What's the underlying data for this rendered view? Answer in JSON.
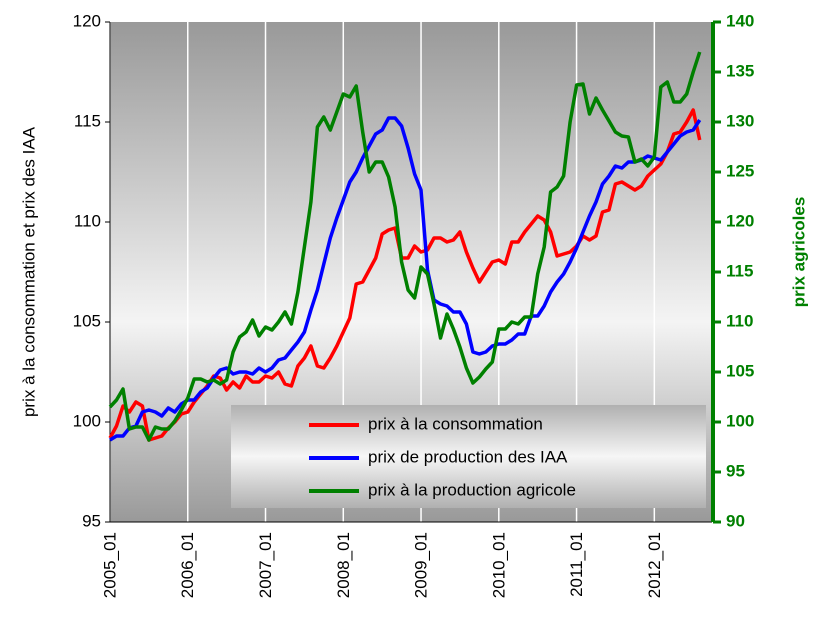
{
  "chart_data": {
    "type": "line",
    "y_label": "prix à la consommation et prix des IAA",
    "y2_label": "prix agricoles",
    "categories": [
      "2005_01",
      null,
      null,
      null,
      null,
      null,
      null,
      null,
      null,
      null,
      null,
      null,
      "2006_01",
      null,
      null,
      null,
      null,
      null,
      null,
      null,
      null,
      null,
      null,
      null,
      "2007_01",
      null,
      null,
      null,
      null,
      null,
      null,
      null,
      null,
      null,
      null,
      null,
      "2008_01",
      null,
      null,
      null,
      null,
      null,
      null,
      null,
      null,
      null,
      null,
      null,
      "2009_01",
      null,
      null,
      null,
      null,
      null,
      null,
      null,
      null,
      null,
      null,
      null,
      "2010_01",
      null,
      null,
      null,
      null,
      null,
      null,
      null,
      null,
      null,
      null,
      null,
      "2011_01",
      null,
      null,
      null,
      null,
      null,
      null,
      null,
      null,
      null,
      null,
      null,
      "2012_01",
      null,
      null,
      null,
      null,
      null,
      null,
      null
    ],
    "series": [
      {
        "name": "prix à la consommation",
        "color": "#ff0000",
        "values": [
          99.2,
          99.8,
          100.8,
          100.5,
          101.0,
          100.8,
          99.1,
          99.2,
          99.3,
          99.7,
          100.0,
          100.4,
          100.5,
          101.0,
          101.4,
          101.8,
          102.3,
          102.2,
          101.6,
          102.0,
          101.7,
          102.3,
          102.0,
          102.0,
          102.3,
          102.2,
          102.5,
          101.9,
          101.8,
          102.8,
          103.2,
          103.8,
          102.8,
          102.7,
          103.2,
          103.8,
          104.5,
          105.2,
          106.9,
          107.0,
          107.6,
          108.2,
          109.4,
          109.6,
          109.7,
          108.2,
          108.2,
          108.8,
          108.5,
          108.6,
          109.2,
          109.2,
          109.0,
          109.1,
          109.5,
          108.5,
          107.7,
          107.0,
          107.5,
          108.0,
          108.1,
          107.9,
          109.0,
          109.0,
          109.5,
          109.9,
          110.3,
          110.1,
          109.5,
          108.3,
          108.4,
          108.5,
          108.8,
          109.3,
          109.1,
          109.3,
          110.5,
          110.6,
          111.9,
          112.0,
          111.8,
          111.6,
          111.8,
          112.3,
          112.6,
          112.9,
          113.5,
          114.4,
          114.5,
          115.0,
          115.6,
          114.1
        ]
      },
      {
        "name": "prix de production des IAA",
        "color": "#0000ff",
        "values": [
          99.1,
          99.3,
          99.3,
          99.7,
          99.8,
          100.5,
          100.6,
          100.5,
          100.3,
          100.7,
          100.5,
          100.9,
          101.1,
          101.1,
          101.5,
          101.7,
          102.2,
          102.6,
          102.7,
          102.4,
          102.5,
          102.5,
          102.4,
          102.7,
          102.5,
          102.7,
          103.1,
          103.2,
          103.6,
          104.0,
          104.5,
          105.6,
          106.6,
          107.9,
          109.2,
          110.2,
          111.1,
          112.0,
          112.5,
          113.2,
          113.8,
          114.4,
          114.6,
          115.2,
          115.2,
          114.8,
          113.7,
          112.4,
          111.6,
          107.6,
          106.1,
          105.9,
          105.8,
          105.5,
          105.5,
          104.9,
          103.5,
          103.4,
          103.5,
          103.8,
          103.9,
          103.9,
          104.1,
          104.4,
          104.4,
          105.3,
          105.3,
          105.8,
          106.5,
          107.0,
          107.4,
          108.0,
          108.7,
          109.5,
          110.3,
          111.0,
          111.9,
          112.3,
          112.8,
          112.7,
          113.0,
          113.0,
          113.1,
          113.3,
          113.2,
          113.1,
          113.5,
          113.9,
          114.3,
          114.5,
          114.6,
          115.1
        ]
      },
      {
        "name": "prix à la production agricole",
        "color": "#008000",
        "axis": "y2",
        "values": [
          101.5,
          102.2,
          103.3,
          99.3,
          99.5,
          99.5,
          98.2,
          99.5,
          99.3,
          99.3,
          100.1,
          101.2,
          102.4,
          104.3,
          104.3,
          104.0,
          104.2,
          103.8,
          104.2,
          107.0,
          108.5,
          109.0,
          110.2,
          108.6,
          109.5,
          109.2,
          110.0,
          111.0,
          109.8,
          113.0,
          117.5,
          122.0,
          129.5,
          130.5,
          129.2,
          131.0,
          132.8,
          132.5,
          133.6,
          129.0,
          125.0,
          126.0,
          126.0,
          124.5,
          121.5,
          116.0,
          113.2,
          112.4,
          115.5,
          114.8,
          111.8,
          108.4,
          110.8,
          109.3,
          107.5,
          105.4,
          103.9,
          104.5,
          105.3,
          106.0,
          109.3,
          109.3,
          110.0,
          109.8,
          110.5,
          110.5,
          114.8,
          117.5,
          123.0,
          123.5,
          124.6,
          130.0,
          133.7,
          133.8,
          130.8,
          132.4,
          131.2,
          130.1,
          129.0,
          128.6,
          128.5,
          126.0,
          126.3,
          125.6,
          126.5,
          133.5,
          134.0,
          132.0,
          132.0,
          132.8,
          135.0,
          137.0
        ]
      }
    ],
    "ylim": [
      95,
      120
    ],
    "yticks": [
      95,
      100,
      105,
      110,
      115,
      120
    ],
    "y2lim": [
      90,
      140
    ],
    "y2ticks": [
      90,
      95,
      100,
      105,
      110,
      115,
      120,
      125,
      130,
      135,
      140
    ],
    "xgrid": true,
    "legend": "lower right"
  }
}
